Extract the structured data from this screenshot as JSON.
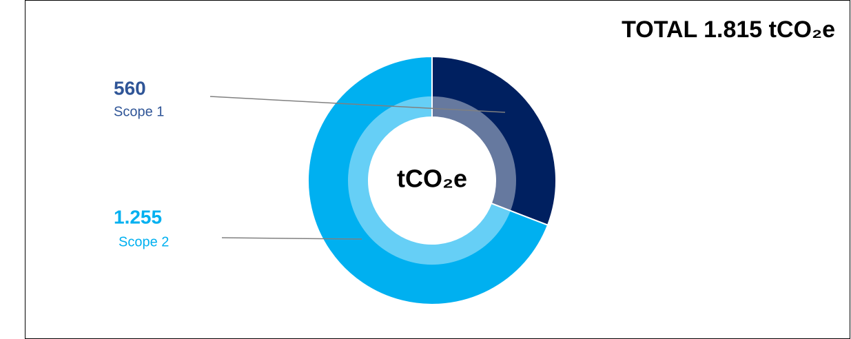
{
  "chart_data": {
    "type": "donut",
    "title": "TOTAL 1.815 tCO₂e",
    "center_label": "tCO₂e",
    "categories": [
      "Scope 1",
      "Scope 2"
    ],
    "values": [
      560,
      1255
    ],
    "value_labels": [
      "560",
      "1.255"
    ],
    "colors": [
      "#002060",
      "#00b0f0"
    ]
  }
}
